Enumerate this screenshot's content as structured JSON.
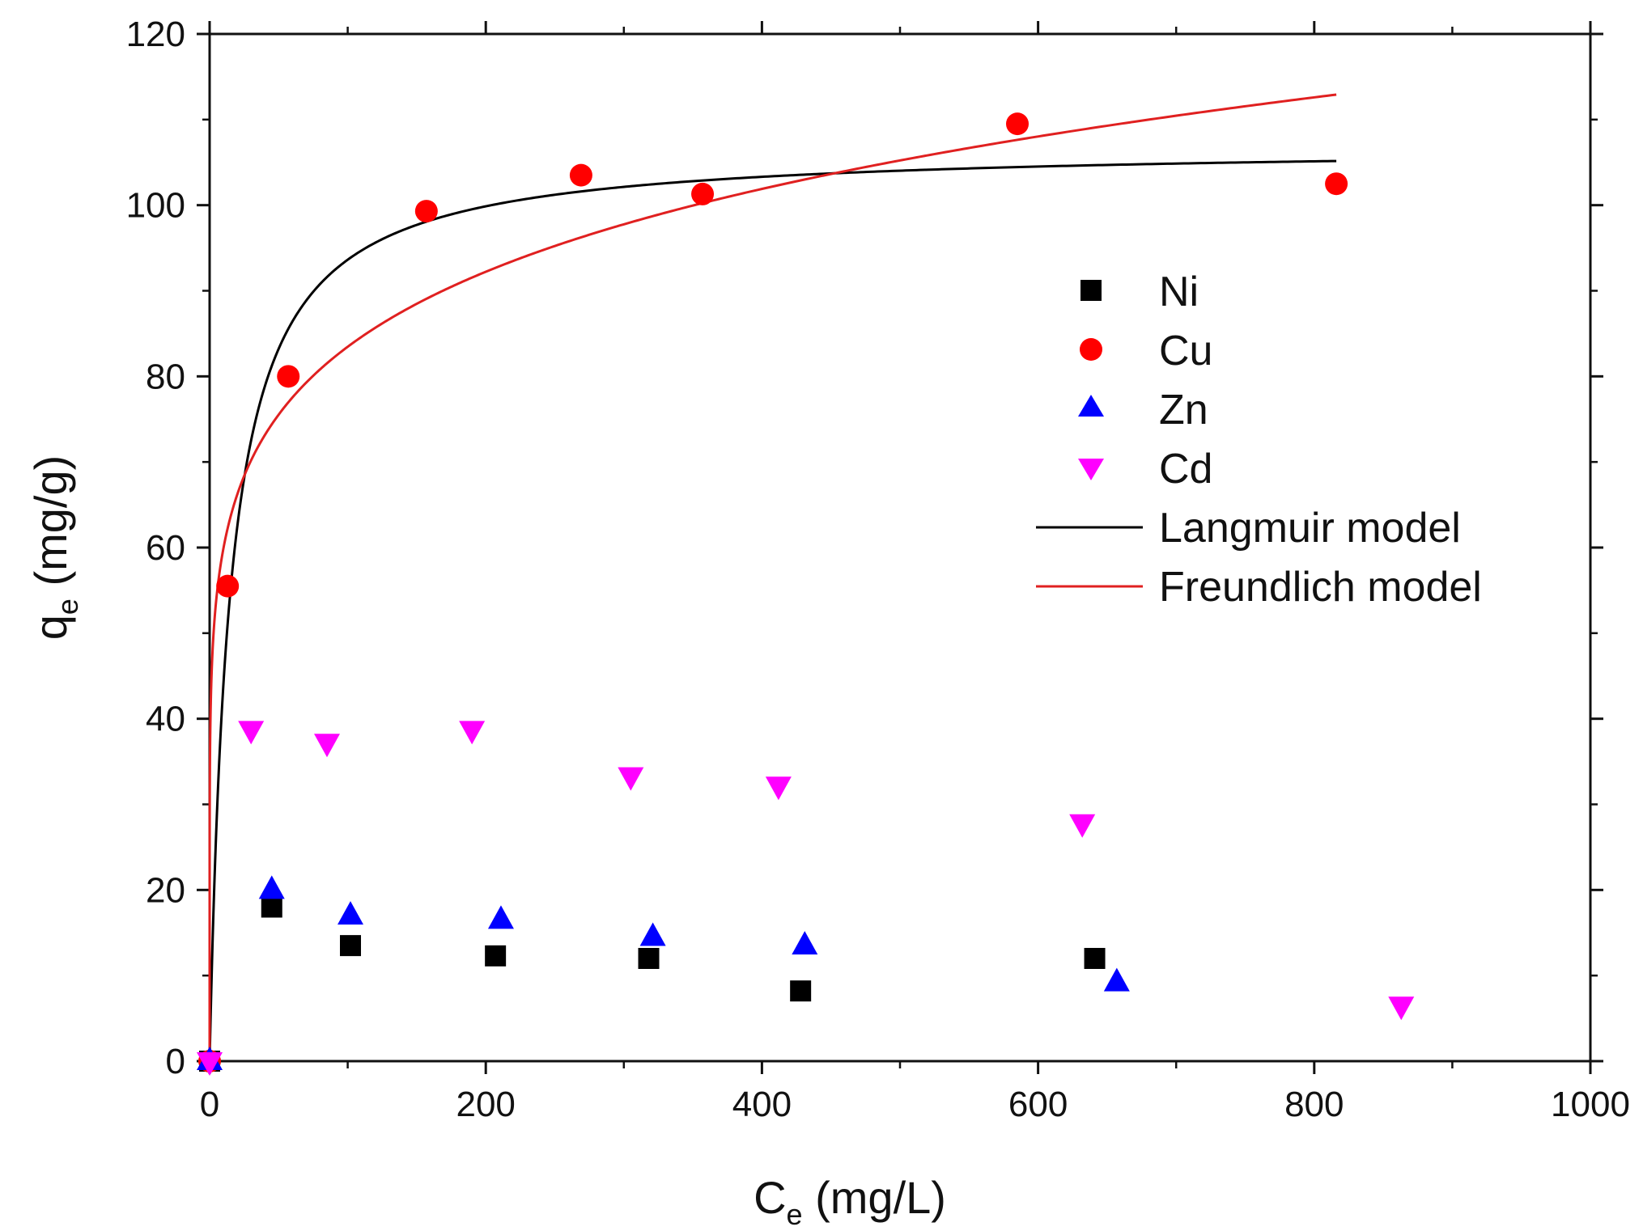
{
  "chart_data": {
    "type": "scatter",
    "xlabel": {
      "main": "C",
      "sub": "e",
      "rest": " (mg/L)"
    },
    "ylabel": {
      "main": "q",
      "sub": "e",
      "rest": " (mg/g)"
    },
    "xlim": [
      0,
      1000
    ],
    "ylim": [
      0,
      120
    ],
    "xticks": [
      0,
      200,
      400,
      600,
      800,
      1000
    ],
    "yticks": [
      0,
      20,
      40,
      60,
      80,
      100,
      120
    ],
    "xtick_labels": [
      "0",
      "200",
      "400",
      "600",
      "800",
      "1000"
    ],
    "ytick_labels": [
      "0",
      "20",
      "40",
      "60",
      "80",
      "100",
      "120"
    ],
    "grid": false,
    "legend_position": "right-middle",
    "series": [
      {
        "name": "Ni",
        "marker": "square",
        "color": "#000000",
        "x": [
          0,
          45,
          102,
          207,
          318,
          428,
          641
        ],
        "y": [
          0,
          18,
          13.5,
          12.3,
          12,
          8.2,
          12
        ]
      },
      {
        "name": "Cu",
        "marker": "circle",
        "color": "#ff0000",
        "x": [
          0,
          13,
          57,
          157,
          269,
          357,
          585,
          816
        ],
        "y": [
          0,
          55.5,
          80,
          99.3,
          103.5,
          101.3,
          109.5,
          102.5
        ]
      },
      {
        "name": "Zn",
        "marker": "triangle-up",
        "color": "#0000ff",
        "x": [
          0,
          45,
          102,
          211,
          321,
          431,
          657
        ],
        "y": [
          0,
          20,
          17,
          16.5,
          14.5,
          13.5,
          9.2
        ]
      },
      {
        "name": "Cd",
        "marker": "triangle-down",
        "color": "#ff00ff",
        "x": [
          0,
          30,
          85,
          190,
          305,
          412,
          632,
          863
        ],
        "y": [
          0,
          38.7,
          37.2,
          38.7,
          33.3,
          32.2,
          27.8,
          6.5
        ]
      }
    ],
    "fits": [
      {
        "name": "Langmuir model",
        "color": "#000000",
        "type": "langmuir",
        "qmax": 107,
        "KL": 0.07,
        "x_range": [
          0,
          816
        ]
      },
      {
        "name": "Freundlich model",
        "color": "#e02020",
        "type": "freundlich",
        "KF": 43,
        "n_inv": 0.144,
        "x_range": [
          0,
          816
        ]
      }
    ]
  }
}
